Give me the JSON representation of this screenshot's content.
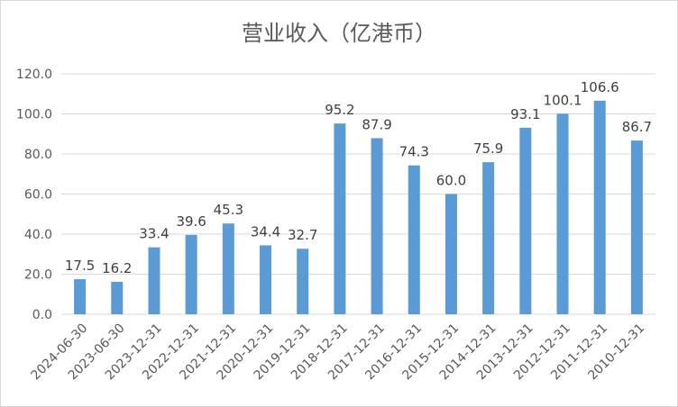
{
  "chart_data": {
    "type": "bar",
    "title": "营业收入（亿港币）",
    "xlabel": "",
    "ylabel": "",
    "categories": [
      "2024-06-30",
      "2023-06-30",
      "2023-12-31",
      "2022-12-31",
      "2021-12-31",
      "2020-12-31",
      "2019-12-31",
      "2018-12-31",
      "2017-12-31",
      "2016-12-31",
      "2015-12-31",
      "2014-12-31",
      "2013-12-31",
      "2012-12-31",
      "2011-12-31",
      "2010-12-31"
    ],
    "values": [
      17.5,
      16.2,
      33.4,
      39.6,
      45.3,
      34.4,
      32.7,
      95.2,
      87.9,
      74.3,
      60.0,
      75.9,
      93.1,
      100.1,
      106.6,
      86.7
    ],
    "value_labels": [
      "17.5",
      "16.2",
      "33.4",
      "39.6",
      "45.3",
      "34.4",
      "32.7",
      "95.2",
      "87.9",
      "74.3",
      "60.0",
      "75.9",
      "93.1",
      "100.1",
      "106.6",
      "86.7"
    ],
    "ylim": [
      0,
      120
    ],
    "yticks": [
      "0.0",
      "20.0",
      "40.0",
      "60.0",
      "80.0",
      "100.0",
      "120.0"
    ],
    "grid": true,
    "legend": "none",
    "bar_color": "#5b9bd5"
  }
}
